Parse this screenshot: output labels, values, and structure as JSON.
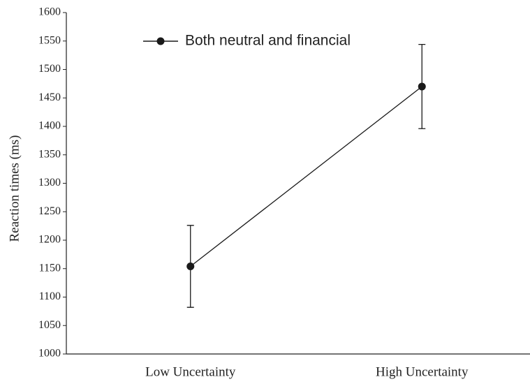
{
  "chart_data": {
    "type": "line",
    "ylabel": "Reaction times (ms)",
    "categories": [
      "Low Uncertainty",
      "High Uncertainty"
    ],
    "series": [
      {
        "name": "Both neutral and financial",
        "color": "#1a1a1a",
        "values": [
          1154,
          1470
        ],
        "errors": [
          72,
          74
        ]
      }
    ],
    "ylim": [
      1000,
      1600
    ],
    "yticks": [
      1000,
      1050,
      1100,
      1150,
      1200,
      1250,
      1300,
      1350,
      1400,
      1450,
      1500,
      1550,
      1600
    ],
    "grid": false,
    "legend": "upper left"
  }
}
